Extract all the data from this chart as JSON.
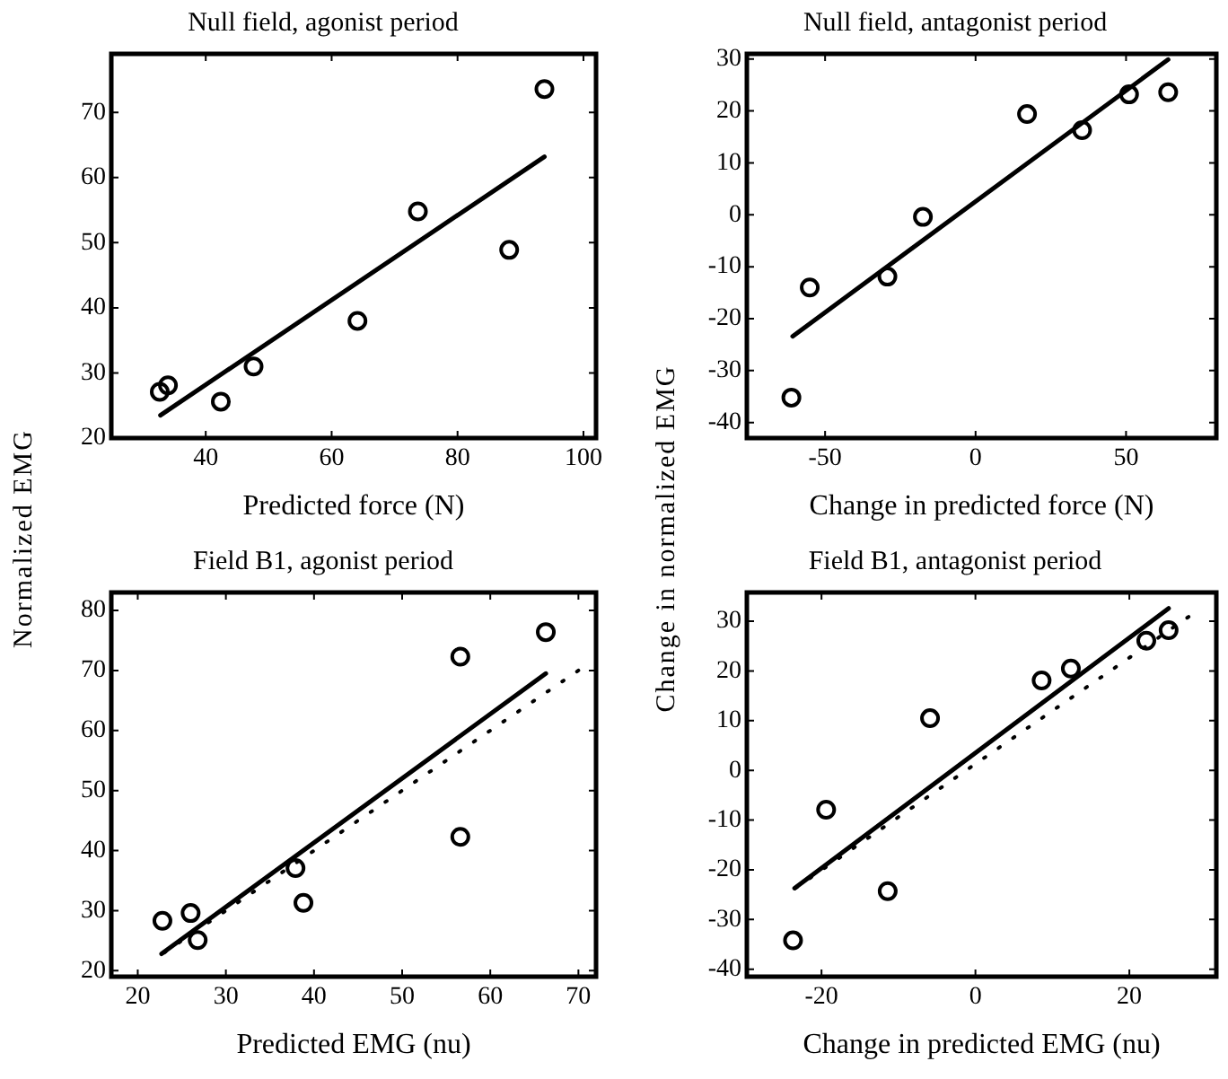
{
  "chart_data": [
    {
      "type": "scatter",
      "title": "Null field, agonist period",
      "xlabel": "Predicted force (N)",
      "ylabel": "Normalized EMG",
      "xlim": [
        25,
        102
      ],
      "ylim": [
        20,
        79
      ],
      "xticks": [
        40,
        60,
        80,
        100
      ],
      "yticks": [
        20,
        30,
        40,
        50,
        60,
        70
      ],
      "series": [
        {
          "type": "scatter",
          "color": "#000000",
          "marker": "circle",
          "x": [
            32.7,
            34.0,
            42.4,
            47.6,
            64.1,
            73.7,
            88.2,
            93.8
          ],
          "values": [
            27.1,
            28.1,
            25.6,
            31.0,
            38.0,
            54.8,
            48.9,
            73.6
          ]
        },
        {
          "type": "line",
          "color": "#000000",
          "marker": "none",
          "line_style": "solid",
          "x": [
            32.8,
            93.8
          ],
          "values": [
            23.5,
            63.2
          ]
        }
      ]
    },
    {
      "type": "scatter",
      "title": "Null field, antagonist period",
      "xlabel": "Change in predicted force (N)",
      "ylabel": "Change in normalized EMG",
      "xlim": [
        -76,
        80
      ],
      "ylim": [
        -43,
        31
      ],
      "xticks": [
        -50,
        0,
        50
      ],
      "yticks": [
        -40,
        -30,
        -20,
        -10,
        0,
        10,
        20,
        30
      ],
      "series": [
        {
          "type": "scatter",
          "color": "#000000",
          "marker": "circle",
          "x": [
            -61.2,
            -55.1,
            -29.3,
            -17.5,
            17.1,
            35.4,
            51.0,
            64.0
          ],
          "values": [
            -35.2,
            -14.0,
            -11.9,
            -0.4,
            19.4,
            16.3,
            23.2,
            23.6
          ]
        },
        {
          "type": "line",
          "color": "#000000",
          "marker": "none",
          "line_style": "solid",
          "x": [
            -60.8,
            64.0
          ],
          "values": [
            -23.4,
            29.9
          ]
        }
      ]
    },
    {
      "type": "scatter",
      "title": "Field B1, agonist period",
      "xlabel": "Predicted EMG (nu)",
      "xlim": [
        17,
        72
      ],
      "ylim": [
        19,
        83
      ],
      "xticks": [
        20,
        30,
        40,
        50,
        60,
        70
      ],
      "yticks": [
        20,
        30,
        40,
        50,
        60,
        70,
        80
      ],
      "series": [
        {
          "type": "scatter",
          "color": "#000000",
          "marker": "circle",
          "x": [
            22.8,
            26.0,
            26.8,
            37.9,
            38.8,
            56.6,
            56.6,
            66.3
          ],
          "values": [
            28.3,
            29.6,
            25.1,
            37.1,
            31.3,
            72.3,
            42.3,
            76.4
          ]
        },
        {
          "type": "line",
          "color": "#000000",
          "marker": "none",
          "line_style": "solid",
          "x": [
            22.7,
            66.3
          ],
          "values": [
            22.8,
            69.5
          ]
        },
        {
          "type": "line",
          "color": "#000000",
          "marker": "none",
          "line_style": "dotted",
          "x": [
            23,
            70
          ],
          "values": [
            23,
            70
          ]
        }
      ]
    },
    {
      "type": "scatter",
      "title": "Field B1, antagonist period",
      "xlabel": "Change in predicted EMG (nu)",
      "xlim": [
        -29.7,
        31.3
      ],
      "ylim": [
        -41.5,
        35.8
      ],
      "xticks": [
        -20,
        0,
        20
      ],
      "yticks": [
        -40,
        -30,
        -20,
        -10,
        0,
        10,
        20,
        30
      ],
      "series": [
        {
          "type": "scatter",
          "color": "#000000",
          "marker": "circle",
          "x": [
            -23.7,
            -19.4,
            -11.4,
            -5.9,
            8.6,
            12.4,
            22.2,
            25.1
          ],
          "values": [
            -34.2,
            -7.9,
            -24.3,
            10.5,
            18.1,
            20.5,
            26.1,
            28.2
          ]
        },
        {
          "type": "line",
          "color": "#000000",
          "marker": "none",
          "line_style": "solid",
          "x": [
            -23.5,
            25.1
          ],
          "values": [
            -23.7,
            32.6
          ]
        },
        {
          "type": "line",
          "color": "#000000",
          "marker": "none",
          "line_style": "dotted",
          "x": [
            -23.4,
            27.7
          ],
          "values": [
            -23.7,
            30.9
          ]
        }
      ]
    }
  ]
}
